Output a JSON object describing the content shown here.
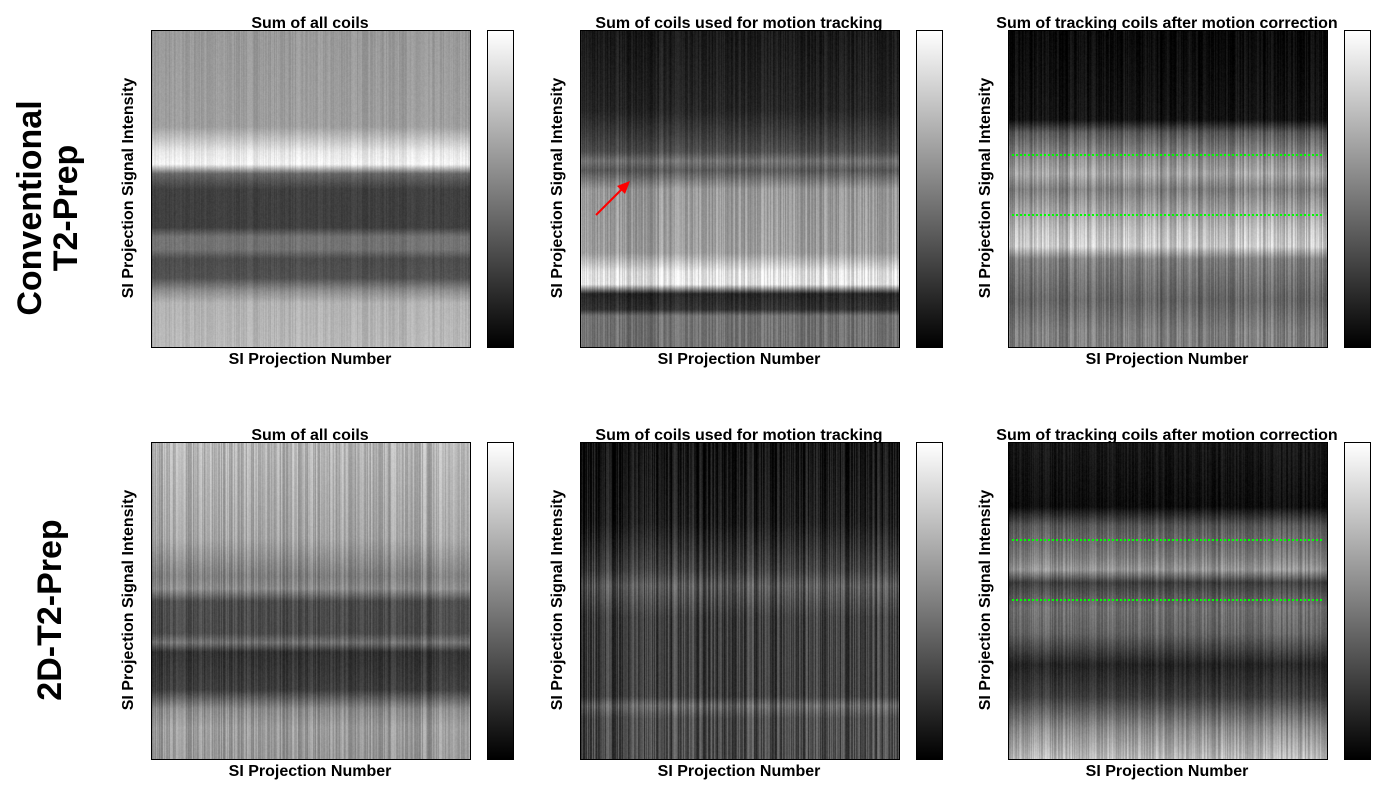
{
  "row_labels": [
    "Conventional\nT2-Prep",
    "2D-T2-Prep"
  ],
  "chart_data": [
    {
      "type": "heatmap",
      "row": "Conventional T2-Prep",
      "title": "Sum of all coils",
      "xlabel": "SI Projection Number",
      "ylabel": "SI Projection Signal Intensity",
      "colormap": "gray",
      "colorbar": true,
      "ticks": false
    },
    {
      "type": "heatmap",
      "row": "Conventional T2-Prep",
      "title": "Sum of coils used for motion tracking",
      "xlabel": "SI Projection Number",
      "ylabel": "SI Projection Signal Intensity",
      "colormap": "gray",
      "colorbar": true,
      "ticks": false,
      "annotation": "red-arrow"
    },
    {
      "type": "heatmap",
      "row": "Conventional T2-Prep",
      "title": "Sum of tracking coils after motion correction",
      "xlabel": "SI Projection Number",
      "ylabel": "SI Projection Signal Intensity",
      "colormap": "gray",
      "colorbar": true,
      "ticks": false,
      "annotation": "green dotted lines",
      "annotation_color": "#00ff00"
    },
    {
      "type": "heatmap",
      "row": "2D-T2-Prep",
      "title": "Sum of all coils",
      "xlabel": "SI Projection Number",
      "ylabel": "SI Projection Signal Intensity",
      "colormap": "gray",
      "colorbar": true,
      "ticks": false
    },
    {
      "type": "heatmap",
      "row": "2D-T2-Prep",
      "title": "Sum of coils used for motion tracking",
      "xlabel": "SI Projection Number",
      "ylabel": "SI Projection Signal Intensity",
      "colormap": "gray",
      "colorbar": true,
      "ticks": false
    },
    {
      "type": "heatmap",
      "row": "2D-T2-Prep",
      "title": "Sum of tracking coils after motion correction",
      "xlabel": "SI Projection Number",
      "ylabel": "SI Projection Signal Intensity",
      "colormap": "gray",
      "colorbar": true,
      "ticks": false,
      "annotation": "green dotted lines",
      "annotation_color": "#00ff00"
    }
  ],
  "colors": {
    "arrow": "#ff0000",
    "guide_lines": "#00ff00"
  }
}
